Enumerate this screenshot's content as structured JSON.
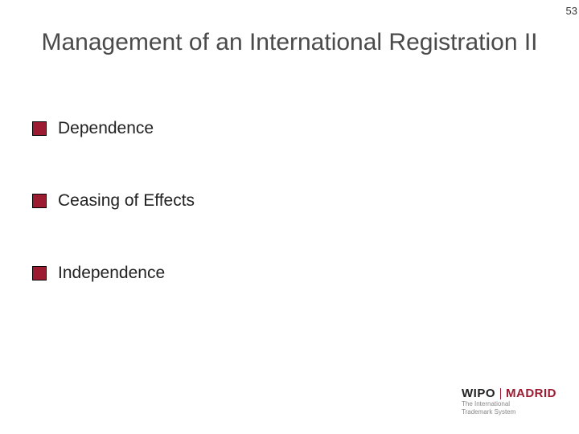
{
  "page_number": "53",
  "title": "Management of an International Registration II",
  "bullet_color": "#9b1b30",
  "bullets": [
    {
      "text": "Dependence"
    },
    {
      "text": "Ceasing of Effects"
    },
    {
      "text": "Independence"
    }
  ],
  "footer": {
    "wipo": "WIPO",
    "madrid": "MADRID",
    "madrid_color": "#9b1b30",
    "sub1": "The International",
    "sub2": "Trademark System"
  }
}
